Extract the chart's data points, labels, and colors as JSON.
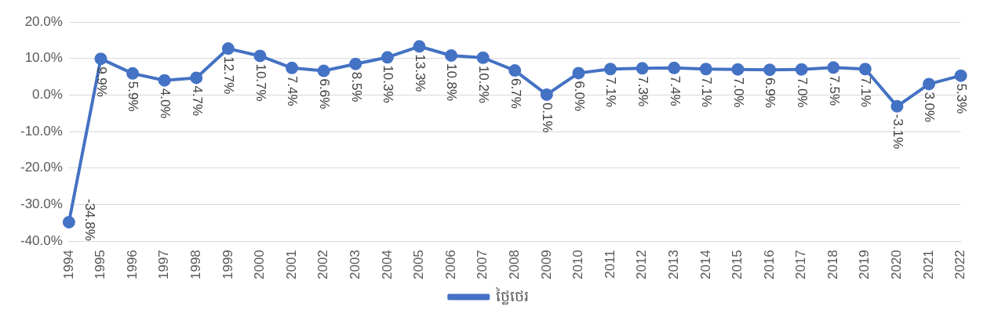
{
  "chart_data": {
    "type": "line",
    "categories": [
      "1994",
      "1995",
      "1996",
      "1997",
      "1998",
      "1999",
      "2000",
      "2001",
      "2002",
      "2003",
      "2004",
      "2005",
      "2006",
      "2007",
      "2008",
      "2009",
      "2010",
      "2011",
      "2012",
      "2013",
      "2014",
      "2015",
      "2016",
      "2017",
      "2018",
      "2019",
      "2020",
      "2021",
      "2022"
    ],
    "series": [
      {
        "name": "ថ្លៃថេរ",
        "color": "#4472c4",
        "values": [
          -34.8,
          9.9,
          5.9,
          4.0,
          4.7,
          12.7,
          10.7,
          7.4,
          6.6,
          8.5,
          10.3,
          13.3,
          10.8,
          10.2,
          6.7,
          0.1,
          6.0,
          7.1,
          7.3,
          7.4,
          7.1,
          7.0,
          6.9,
          7.0,
          7.5,
          7.1,
          -3.1,
          3.0,
          5.3
        ],
        "value_labels": [
          "-34.8%",
          "9.9%",
          "5.9%",
          "4.0%",
          "4.7%",
          "12.7%",
          "10.7%",
          "7.4%",
          "6.6%",
          "8.5%",
          "10.3%",
          "13.3%",
          "10.8%",
          "10.2%",
          "6.7%",
          "0.1%",
          "6.0%",
          "7.1%",
          "7.3%",
          "7.4%",
          "7.1%",
          "7.0%",
          "6.9%",
          "7.0%",
          "7.5%",
          "7.1%",
          "-3.1%",
          "3.0%",
          "5.3%"
        ]
      }
    ],
    "ylim": [
      -40,
      20
    ],
    "yticks": [
      {
        "value": -40,
        "label": "-40.0%"
      },
      {
        "value": -30,
        "label": "-30.0%"
      },
      {
        "value": -20,
        "label": "-20.0%"
      },
      {
        "value": -10,
        "label": "-10.0%"
      },
      {
        "value": 0,
        "label": "0.0%"
      },
      {
        "value": 10,
        "label": "10.0%"
      },
      {
        "value": 20,
        "label": "20.0%"
      }
    ],
    "grid": "y",
    "legend": "bottom",
    "marker": "circle",
    "line_style": "solid"
  }
}
